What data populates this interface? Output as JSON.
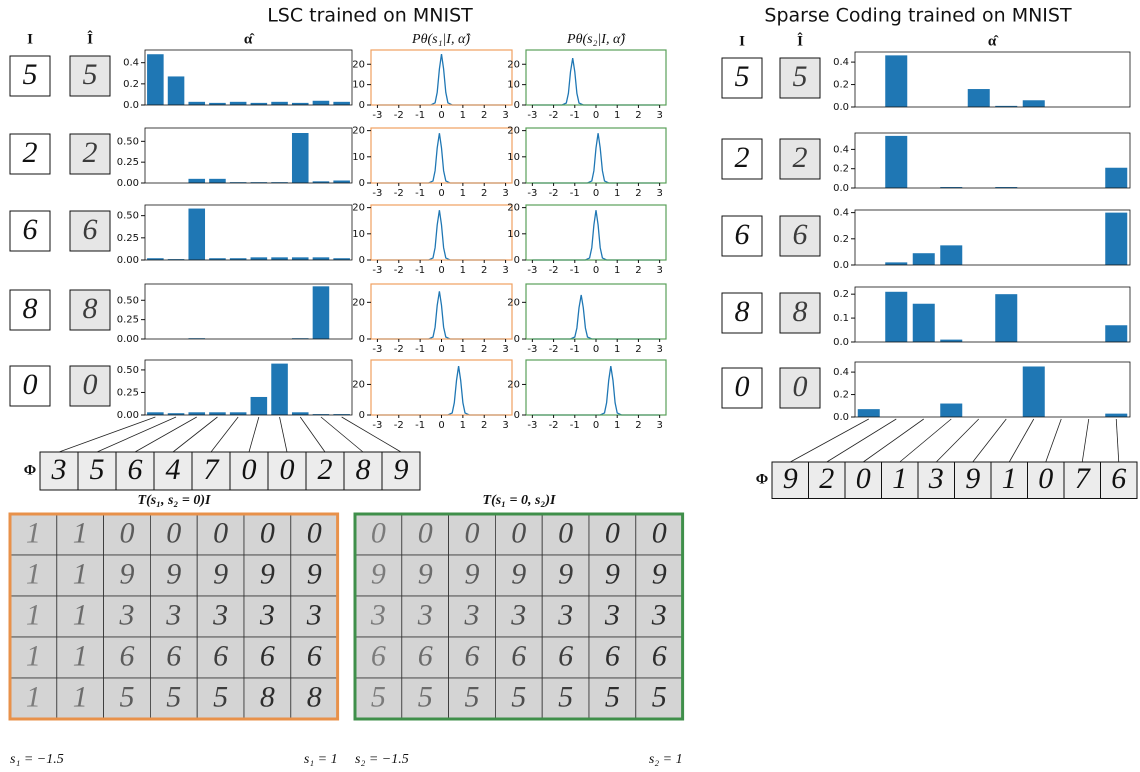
{
  "lsc": {
    "title": "LSC trained on MNIST",
    "headers": {
      "input": "I",
      "recon": "Î",
      "alpha": "α̂",
      "p1": "Pθ(s₁|I, α̂)",
      "p2": "Pθ(s₂|I, α̂)"
    },
    "inputs": [
      "5",
      "2",
      "6",
      "8",
      "0"
    ],
    "recons": [
      "5",
      "2",
      "6",
      "8",
      "0"
    ],
    "phi_label": "Φ",
    "phi": [
      "3",
      "5",
      "6",
      "4",
      "7",
      "0",
      "0",
      "2",
      "8",
      "9"
    ]
  },
  "sc": {
    "title": "Sparse Coding trained on MNIST",
    "headers": {
      "input": "I",
      "recon": "Î",
      "alpha": "α̂"
    },
    "inputs": [
      "5",
      "2",
      "6",
      "8",
      "0"
    ],
    "recons": [
      "5",
      "2",
      "6",
      "8",
      "0"
    ],
    "phi_label": "Φ",
    "phi": [
      "9",
      "2",
      "0",
      "1",
      "3",
      "9",
      "1",
      "0",
      "7",
      "6"
    ]
  },
  "transforms": [
    {
      "title": "T(s₁, s₂ = 0)I",
      "min_label": "s₁ = −1.5",
      "max_label": "s₁ = 1",
      "color": "#e8914a",
      "rows": [
        [
          "1",
          "1",
          "0",
          "0",
          "0",
          "0",
          "0"
        ],
        [
          "1",
          "1",
          "9",
          "9",
          "9",
          "9",
          "9"
        ],
        [
          "1",
          "1",
          "3",
          "3",
          "3",
          "3",
          "3"
        ],
        [
          "1",
          "1",
          "6",
          "6",
          "6",
          "6",
          "6"
        ],
        [
          "1",
          "1",
          "5",
          "5",
          "5",
          "8",
          "8"
        ]
      ]
    },
    {
      "title": "T(s₁ = 0, s₂)I",
      "min_label": "s₂ = −1.5",
      "max_label": "s₂ = 1",
      "color": "#3f8f4a",
      "rows": [
        [
          "0",
          "0",
          "0",
          "0",
          "0",
          "0",
          "0"
        ],
        [
          "9",
          "9",
          "9",
          "9",
          "9",
          "9",
          "9"
        ],
        [
          "3",
          "3",
          "3",
          "3",
          "3",
          "3",
          "3"
        ],
        [
          "6",
          "6",
          "6",
          "6",
          "6",
          "6",
          "6"
        ],
        [
          "5",
          "5",
          "5",
          "5",
          "5",
          "5",
          "5"
        ]
      ]
    }
  ],
  "chart_data": [
    {
      "type": "bar",
      "color": "#1f77b4",
      "values": [
        0.48,
        0.27,
        0.03,
        0.02,
        0.03,
        0.02,
        0.03,
        0.02,
        0.04,
        0.03
      ],
      "ylim": [
        0,
        0.52
      ],
      "yticks": [
        {
          "value": 0,
          "label": "0.0"
        },
        {
          "value": 0.2,
          "label": "0.2"
        },
        {
          "value": 0.4,
          "label": "0.4"
        }
      ]
    },
    {
      "type": "bar",
      "color": "#1f77b4",
      "values": [
        0,
        0,
        0.05,
        0.05,
        0.01,
        0.01,
        0.01,
        0.6,
        0.02,
        0.03
      ],
      "ylim": [
        0,
        0.66
      ],
      "yticks": [
        {
          "value": 0,
          "label": "0.00"
        },
        {
          "value": 0.25,
          "label": "0.25"
        },
        {
          "value": 0.5,
          "label": "0.50"
        }
      ]
    },
    {
      "type": "bar",
      "color": "#1f77b4",
      "values": [
        0.02,
        0.01,
        0.58,
        0.02,
        0.02,
        0.03,
        0.03,
        0.03,
        0.03,
        0.02
      ],
      "ylim": [
        0,
        0.62
      ],
      "yticks": [
        {
          "value": 0,
          "label": "0.00"
        },
        {
          "value": 0.25,
          "label": "0.25"
        },
        {
          "value": 0.5,
          "label": "0.50"
        }
      ]
    },
    {
      "type": "bar",
      "color": "#1f77b4",
      "values": [
        0,
        0,
        0.01,
        0,
        0,
        0,
        0,
        0.01,
        0.68,
        0
      ],
      "ylim": [
        0,
        0.71
      ],
      "yticks": [
        {
          "value": 0,
          "label": "0.00"
        },
        {
          "value": 0.25,
          "label": "0.25"
        },
        {
          "value": 0.5,
          "label": "0.50"
        }
      ]
    },
    {
      "type": "bar",
      "color": "#1f77b4",
      "values": [
        0.03,
        0.02,
        0.03,
        0.03,
        0.03,
        0.2,
        0.57,
        0.03,
        0.01,
        0.01
      ],
      "ylim": [
        0,
        0.61
      ],
      "yticks": [
        {
          "value": 0,
          "label": "0.00"
        },
        {
          "value": 0.25,
          "label": "0.25"
        },
        {
          "value": 0.5,
          "label": "0.50"
        }
      ]
    },
    {
      "type": "line",
      "color": "#1f77b4",
      "frame_color": "#f0a060",
      "x": [
        -3,
        -0.5,
        -0.3,
        -0.2,
        -0.1,
        0,
        0.1,
        0.2,
        0.3,
        0.5,
        3
      ],
      "values": [
        0,
        0,
        1.1,
        6.2,
        17.7,
        25,
        17.7,
        6.2,
        1.1,
        0,
        0
      ],
      "xlim": [
        -3.3,
        3.3
      ],
      "ylim": [
        0,
        27
      ],
      "xticks": [
        -3,
        -2,
        -1,
        0,
        1,
        2,
        3
      ],
      "yticks": [
        0,
        10,
        20
      ]
    },
    {
      "type": "line",
      "color": "#1f77b4",
      "frame_color": "#f0a060",
      "x": [
        -3,
        -0.6,
        -0.4,
        -0.3,
        -0.2,
        -0.1,
        0,
        0.1,
        0.2,
        0.4,
        3
      ],
      "values": [
        0,
        0,
        0.8,
        4.7,
        13.4,
        19,
        13.4,
        4.7,
        0.8,
        0,
        0
      ],
      "xlim": [
        -3.3,
        3.3
      ],
      "ylim": [
        0,
        21
      ],
      "xticks": [
        -3,
        -2,
        -1,
        0,
        1,
        2,
        3
      ],
      "yticks": [
        0,
        10,
        20
      ]
    },
    {
      "type": "line",
      "color": "#1f77b4",
      "frame_color": "#f0a060",
      "x": [
        -3,
        -0.6,
        -0.4,
        -0.3,
        -0.2,
        -0.1,
        0,
        0.1,
        0.2,
        0.4,
        3
      ],
      "values": [
        0,
        0,
        0.8,
        4.7,
        13.4,
        19,
        13.4,
        4.7,
        0.8,
        0,
        0
      ],
      "xlim": [
        -3.3,
        3.3
      ],
      "ylim": [
        0,
        21
      ],
      "xticks": [
        -3,
        -2,
        -1,
        0,
        1,
        2,
        3
      ],
      "yticks": [
        0,
        10,
        20
      ]
    },
    {
      "type": "line",
      "color": "#1f77b4",
      "frame_color": "#f0a060",
      "x": [
        -3,
        -0.6,
        -0.4,
        -0.3,
        -0.2,
        -0.1,
        0,
        0.1,
        0.2,
        0.4,
        3
      ],
      "values": [
        0,
        0,
        1.1,
        6.5,
        18.4,
        26,
        18.4,
        6.5,
        1.1,
        0,
        0
      ],
      "xlim": [
        -3.3,
        3.3
      ],
      "ylim": [
        0,
        30
      ],
      "xticks": [
        -3,
        -2,
        -1,
        0,
        1,
        2,
        3
      ],
      "yticks": [
        0,
        20
      ]
    },
    {
      "type": "line",
      "color": "#1f77b4",
      "frame_color": "#f0a060",
      "x": [
        -3,
        0.3,
        0.5,
        0.6,
        0.7,
        0.8,
        0.9,
        1,
        1.1,
        1.3,
        3
      ],
      "values": [
        0,
        0,
        1.4,
        8,
        22.6,
        32,
        22.6,
        8,
        1.4,
        0,
        0
      ],
      "xlim": [
        -3.3,
        3.3
      ],
      "ylim": [
        0,
        36
      ],
      "xticks": [
        -3,
        -2,
        -1,
        0,
        1,
        2,
        3
      ],
      "yticks": [
        0,
        20
      ]
    },
    {
      "type": "line",
      "color": "#1f77b4",
      "frame_color": "#5aa05a",
      "x": [
        -3,
        -1.6,
        -1.4,
        -1.3,
        -1.2,
        -1.1,
        -1,
        -0.9,
        -0.8,
        -0.6,
        3
      ],
      "values": [
        0,
        0,
        1,
        5.7,
        16.3,
        23,
        16.3,
        5.7,
        1,
        0,
        0
      ],
      "xlim": [
        -3.3,
        3.3
      ],
      "ylim": [
        0,
        27
      ],
      "xticks": [
        -3,
        -2,
        -1,
        0,
        1,
        2,
        3
      ],
      "yticks": [
        0,
        10,
        20
      ]
    },
    {
      "type": "line",
      "color": "#1f77b4",
      "frame_color": "#5aa05a",
      "x": [
        -3,
        -0.4,
        -0.2,
        -0.1,
        0,
        0.1,
        0.2,
        0.3,
        0.4,
        0.6,
        3
      ],
      "values": [
        0,
        0,
        0.8,
        4.7,
        13.4,
        19,
        13.4,
        4.7,
        0.8,
        0,
        0
      ],
      "xlim": [
        -3.3,
        3.3
      ],
      "ylim": [
        0,
        21
      ],
      "xticks": [
        -3,
        -2,
        -1,
        0,
        1,
        2,
        3
      ],
      "yticks": [
        0,
        10,
        20
      ]
    },
    {
      "type": "line",
      "color": "#1f77b4",
      "frame_color": "#5aa05a",
      "x": [
        -3,
        -0.5,
        -0.3,
        -0.2,
        -0.1,
        0,
        0.1,
        0.2,
        0.3,
        0.5,
        3
      ],
      "values": [
        0,
        0,
        0.8,
        4.7,
        13.4,
        19,
        13.4,
        4.7,
        0.8,
        0,
        0
      ],
      "xlim": [
        -3.3,
        3.3
      ],
      "ylim": [
        0,
        21
      ],
      "xticks": [
        -3,
        -2,
        -1,
        0,
        1,
        2,
        3
      ],
      "yticks": [
        0,
        10,
        20
      ]
    },
    {
      "type": "line",
      "color": "#1f77b4",
      "frame_color": "#5aa05a",
      "x": [
        -3,
        -1.2,
        -1,
        -0.9,
        -0.8,
        -0.7,
        -0.6,
        -0.5,
        -0.4,
        -0.2,
        3
      ],
      "values": [
        0,
        0,
        1.1,
        6,
        17,
        24,
        17,
        6,
        1.1,
        0,
        0
      ],
      "xlim": [
        -3.3,
        3.3
      ],
      "ylim": [
        0,
        30
      ],
      "xticks": [
        -3,
        -2,
        -1,
        0,
        1,
        2,
        3
      ],
      "yticks": [
        0,
        20
      ]
    },
    {
      "type": "line",
      "color": "#1f77b4",
      "frame_color": "#5aa05a",
      "x": [
        -3,
        0.2,
        0.4,
        0.5,
        0.6,
        0.7,
        0.8,
        0.9,
        1,
        1.2,
        3
      ],
      "values": [
        0,
        0,
        1.4,
        8,
        22.6,
        32,
        22.6,
        8,
        1.4,
        0,
        0
      ],
      "xlim": [
        -3.3,
        3.3
      ],
      "ylim": [
        0,
        36
      ],
      "xticks": [
        -3,
        -2,
        -1,
        0,
        1,
        2,
        3
      ],
      "yticks": [
        0,
        20
      ]
    },
    {
      "type": "bar",
      "color": "#1f77b4",
      "values": [
        0,
        0.46,
        0,
        0,
        0.16,
        0.01,
        0.06,
        0,
        0,
        0
      ],
      "ylim": [
        0,
        0.49
      ],
      "yticks": [
        {
          "value": 0,
          "label": "0.0"
        },
        {
          "value": 0.2,
          "label": "0.2"
        },
        {
          "value": 0.4,
          "label": "0.4"
        }
      ]
    },
    {
      "type": "bar",
      "color": "#1f77b4",
      "values": [
        0,
        0.54,
        0,
        0.01,
        0,
        0.01,
        0,
        0,
        0,
        0.21
      ],
      "ylim": [
        0,
        0.57
      ],
      "yticks": [
        {
          "value": 0,
          "label": "0.0"
        },
        {
          "value": 0.2,
          "label": "0.2"
        },
        {
          "value": 0.4,
          "label": "0.4"
        }
      ]
    },
    {
      "type": "bar",
      "color": "#1f77b4",
      "values": [
        0,
        0.02,
        0.09,
        0.15,
        0,
        0,
        0,
        0,
        0,
        0.4
      ],
      "ylim": [
        0,
        0.42
      ],
      "yticks": [
        {
          "value": 0,
          "label": "0.0"
        },
        {
          "value": 0.2,
          "label": "0.2"
        },
        {
          "value": 0.4,
          "label": "0.4"
        }
      ]
    },
    {
      "type": "bar",
      "color": "#1f77b4",
      "values": [
        0,
        0.21,
        0.16,
        0.01,
        0,
        0.2,
        0,
        0,
        0,
        0.07
      ],
      "ylim": [
        0,
        0.23
      ],
      "yticks": [
        {
          "value": 0,
          "label": "0.0"
        },
        {
          "value": 0.1,
          "label": "0.1"
        },
        {
          "value": 0.2,
          "label": "0.2"
        }
      ]
    },
    {
      "type": "bar",
      "color": "#1f77b4",
      "values": [
        0.07,
        0,
        0,
        0.12,
        0,
        0,
        0.45,
        0,
        0,
        0.03
      ],
      "ylim": [
        0,
        0.49
      ],
      "yticks": [
        {
          "value": 0,
          "label": "0.0"
        },
        {
          "value": 0.2,
          "label": "0.2"
        },
        {
          "value": 0.4,
          "label": "0.4"
        }
      ]
    }
  ]
}
